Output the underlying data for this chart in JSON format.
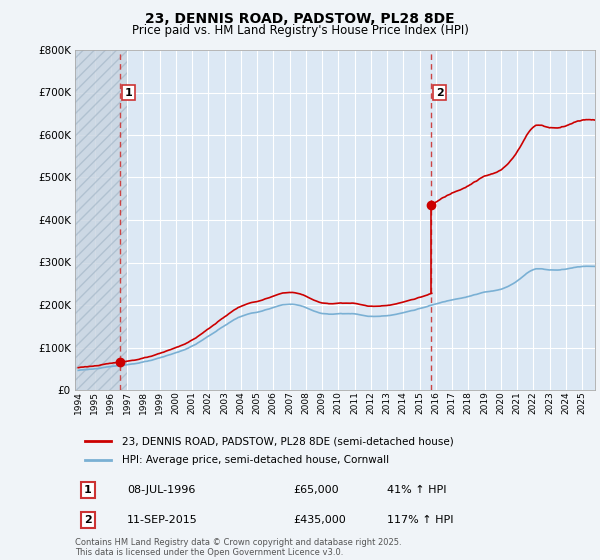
{
  "title": "23, DENNIS ROAD, PADSTOW, PL28 8DE",
  "subtitle": "Price paid vs. HM Land Registry's House Price Index (HPI)",
  "legend_line1": "23, DENNIS ROAD, PADSTOW, PL28 8DE (semi-detached house)",
  "legend_line2": "HPI: Average price, semi-detached house, Cornwall",
  "footer": "Contains HM Land Registry data © Crown copyright and database right 2025.\nThis data is licensed under the Open Government Licence v3.0.",
  "sale1_x": 1996.54,
  "sale1_y": 65000,
  "sale2_x": 2015.71,
  "sale2_y": 435000,
  "ylim": [
    0,
    800000
  ],
  "xlim_start": 1993.8,
  "xlim_end": 2025.8,
  "vline1_x": 1996.54,
  "vline2_x": 2015.71,
  "red_line_color": "#cc0000",
  "blue_line_color": "#7ab0d4",
  "background_color": "#f0f4f8",
  "plot_bg_color": "#dce8f4",
  "grid_color": "#ffffff",
  "vline_color": "#cc4444",
  "ann1_label": "1",
  "ann1_date": "08-JUL-1996",
  "ann1_price": "£65,000",
  "ann1_hpi": "41% ↑ HPI",
  "ann2_label": "2",
  "ann2_date": "11-SEP-2015",
  "ann2_price": "£435,000",
  "ann2_hpi": "117% ↑ HPI"
}
